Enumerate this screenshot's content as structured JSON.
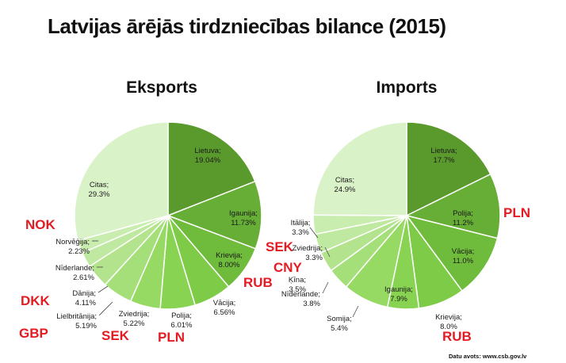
{
  "title": "Latvijas ārējās tirdzniecības bilance (2015)",
  "source": "Datu avots: www.csb.gov.lv",
  "chart_data": [
    {
      "type": "pie",
      "title": "Eksports",
      "slices": [
        {
          "label": "Lietuva;",
          "value_text": "19.04%",
          "value": 19.04,
          "color": "#5a9a2d"
        },
        {
          "label": "Igaunija;",
          "value_text": "11.73%",
          "value": 11.73,
          "color": "#66ae35"
        },
        {
          "label": "Krievija;",
          "value_text": "8.00%",
          "value": 8.0,
          "color": "#6fbc3c"
        },
        {
          "label": "Vācija;",
          "value_text": "6.56%",
          "value": 6.56,
          "color": "#7dcb46"
        },
        {
          "label": "Polija;",
          "value_text": "6.01%",
          "value": 6.01,
          "color": "#88d452"
        },
        {
          "label": "Zviedrija;",
          "value_text": "5.22%",
          "value": 5.22,
          "color": "#96da64"
        },
        {
          "label": "Lielbritānija;",
          "value_text": "5.19%",
          "value": 5.19,
          "color": "#a5df7a"
        },
        {
          "label": "Dānija;",
          "value_text": "4.11%",
          "value": 4.11,
          "color": "#b3e48d"
        },
        {
          "label": "Nīderlande;",
          "value_text": "2.61%",
          "value": 2.61,
          "color": "#bfe9a0"
        },
        {
          "label": "Norvēģija;",
          "value_text": "2.23%",
          "value": 2.23,
          "color": "#c9edae"
        },
        {
          "label": "Citas;",
          "value_text": "29.3%",
          "value": 29.3,
          "color": "#daf2c8"
        }
      ],
      "currencies": [
        "NOK",
        "DKK",
        "GBP",
        "SEK",
        "PLN",
        "RUB"
      ]
    },
    {
      "type": "pie",
      "title": "Imports",
      "slices": [
        {
          "label": "Lietuva;",
          "value_text": "17.7%",
          "value": 17.7,
          "color": "#5a9a2d"
        },
        {
          "label": "Polija;",
          "value_text": "11.2%",
          "value": 11.2,
          "color": "#66ae35"
        },
        {
          "label": "Vācija;",
          "value_text": "11.0%",
          "value": 11.0,
          "color": "#6fbc3c"
        },
        {
          "label": "Krievija;",
          "value_text": "8.0%",
          "value": 8.0,
          "color": "#7dcb46"
        },
        {
          "label": "Somija;",
          "value_text": "5.4%",
          "value": 5.4,
          "color": "#88d452"
        },
        {
          "label": "Igaunija;",
          "value_text": "7.9%",
          "value": 7.9,
          "color": "#96da64"
        },
        {
          "label": "Nīderlande;",
          "value_text": "3.8%",
          "value": 3.8,
          "color": "#a5df7a"
        },
        {
          "label": "Ķīna;",
          "value_text": "3.5%",
          "value": 3.5,
          "color": "#b3e48d"
        },
        {
          "label": "Zviedrija;",
          "value_text": "3.3%",
          "value": 3.3,
          "color": "#bfe9a0"
        },
        {
          "label": "Itālija;",
          "value_text": "3.3%",
          "value": 3.3,
          "color": "#c9edae"
        },
        {
          "label": "Citas;",
          "value_text": "24.9%",
          "value": 24.9,
          "color": "#daf2c8"
        }
      ],
      "currencies": [
        "PLN",
        "SEK",
        "CNY",
        "RUB"
      ]
    }
  ]
}
